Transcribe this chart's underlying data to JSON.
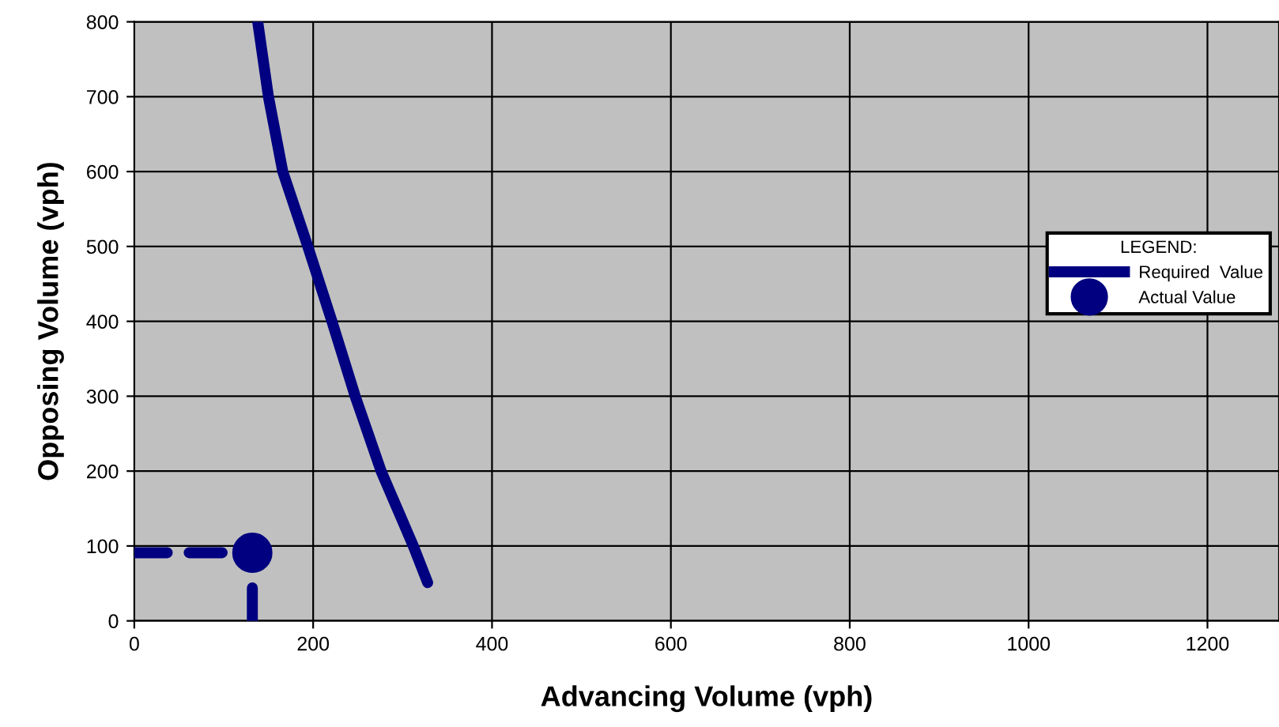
{
  "chart_data": {
    "type": "line",
    "xlabel": "Advancing Volume (vph)",
    "ylabel": "Opposing Volume (vph)",
    "legend_title": "LEGEND:",
    "legend": "right",
    "xlim": [
      0,
      1280
    ],
    "xticks": [
      0,
      200,
      400,
      600,
      800,
      1000,
      1200
    ],
    "ylim": [
      0,
      800
    ],
    "yticks": [
      0,
      100,
      200,
      300,
      400,
      500,
      600,
      700,
      800
    ],
    "grid": true,
    "series": [
      {
        "name": "Required  Value",
        "color": "#000080",
        "line_style": "solid",
        "marker": "none",
        "x": [
          138,
          150,
          166,
          194,
          221,
          247,
          276,
          312,
          328
        ],
        "values": [
          800,
          700,
          600,
          500,
          400,
          300,
          200,
          100,
          51
        ]
      },
      {
        "name": "Actual Value",
        "type": "scatter",
        "color": "#000080",
        "marker": "circle",
        "x": [
          132
        ],
        "values": [
          91
        ]
      },
      {
        "color": "#000080",
        "line_style": "dashed",
        "marker": "none",
        "x": [
          0,
          132
        ],
        "values": [
          91,
          91
        ]
      },
      {
        "color": "#000080",
        "line_style": "dashed",
        "marker": "none",
        "x": [
          132,
          132
        ],
        "values": [
          0,
          91
        ]
      }
    ]
  }
}
